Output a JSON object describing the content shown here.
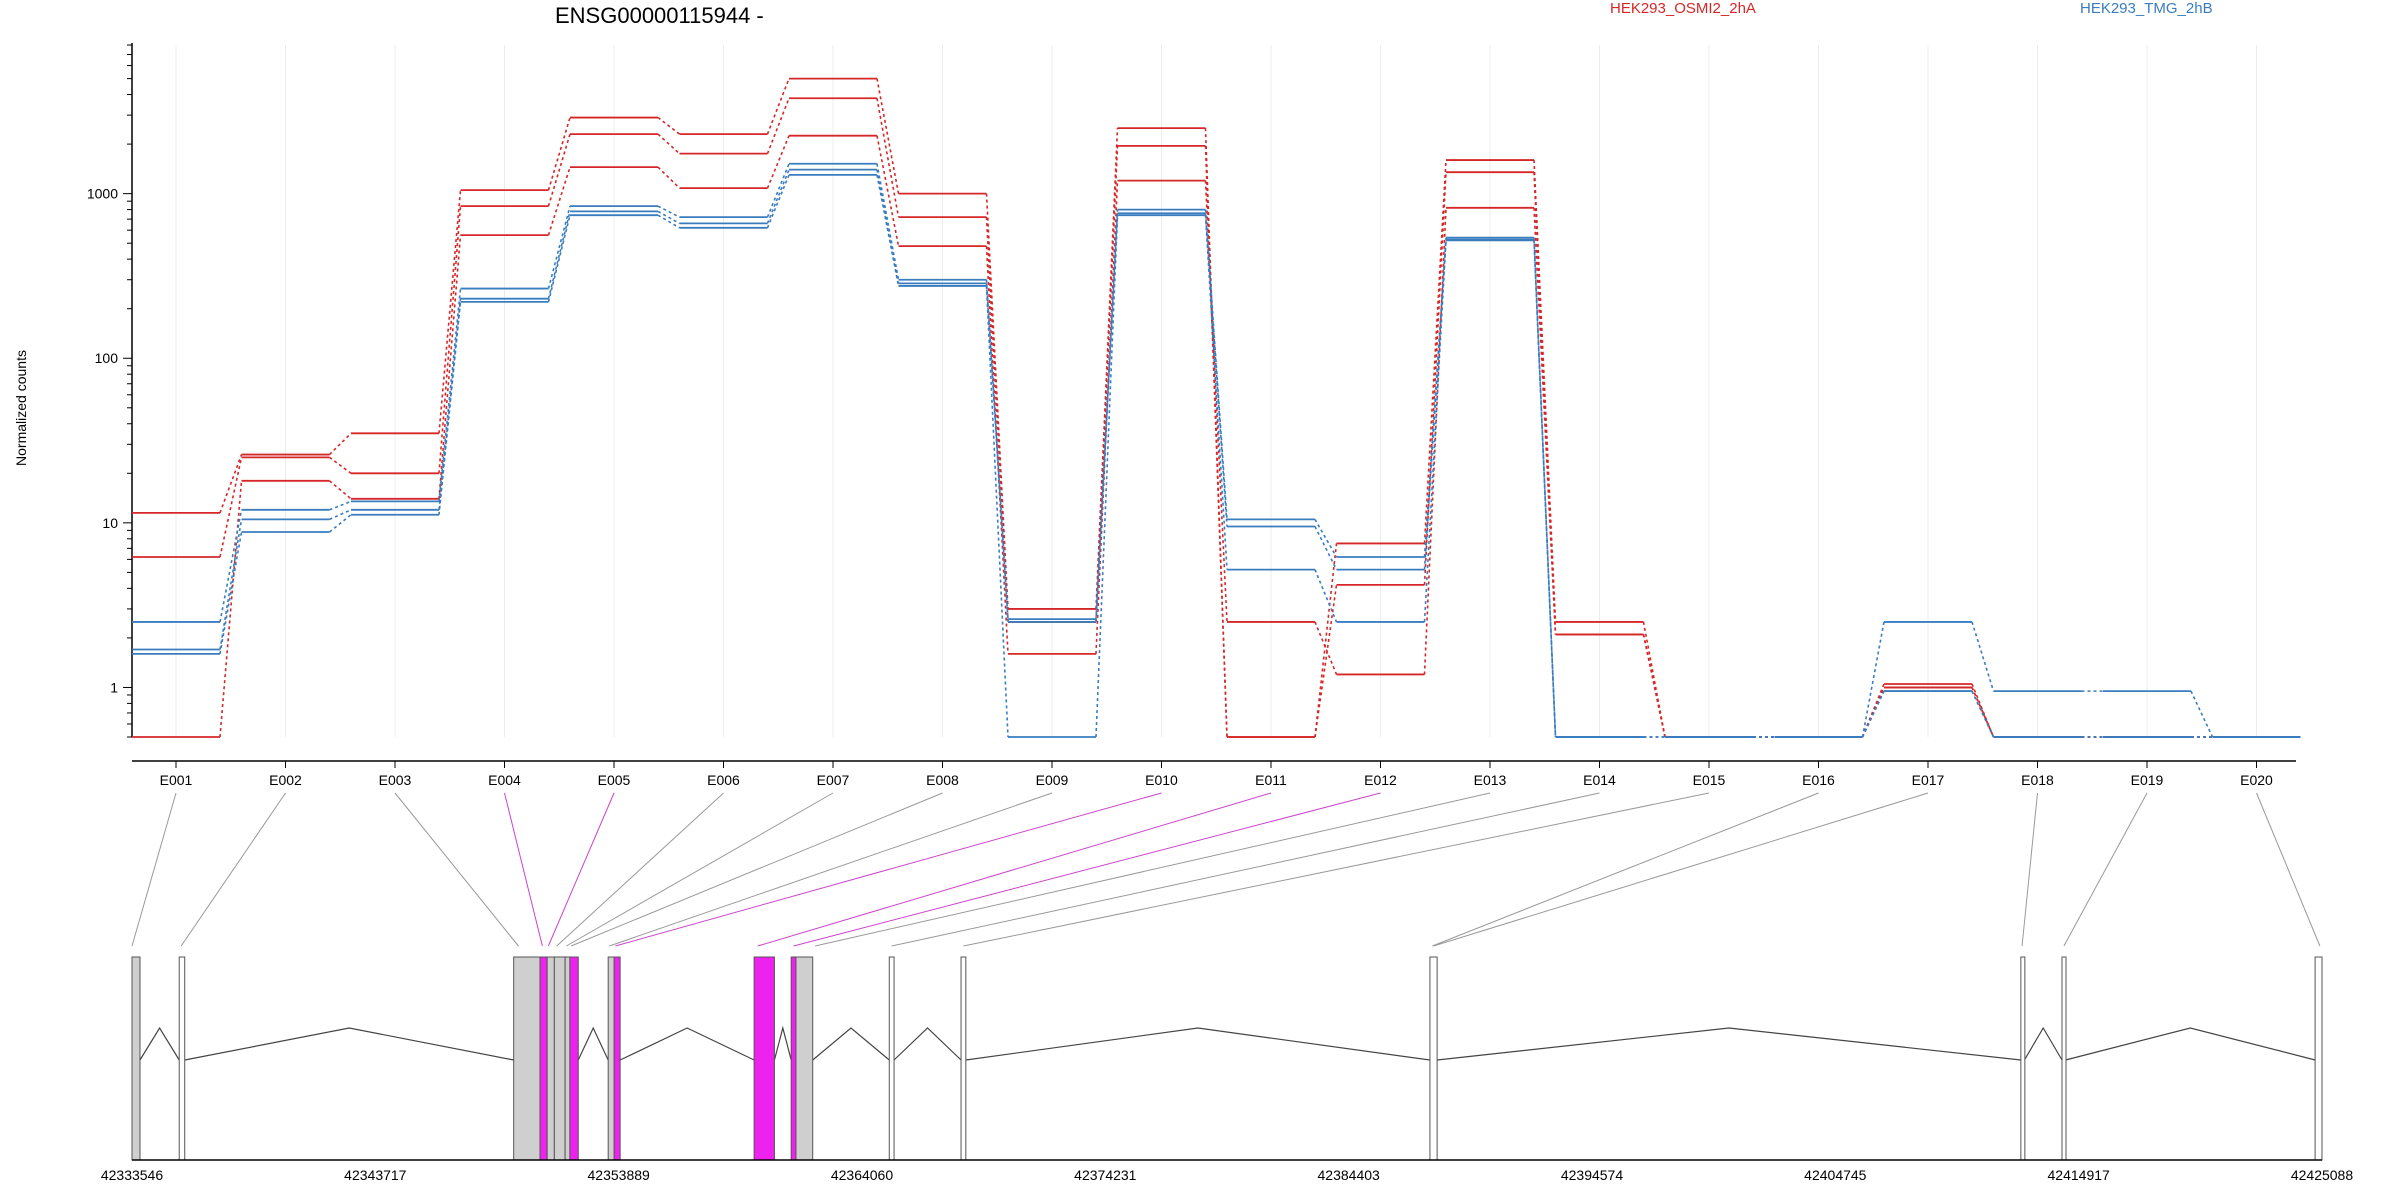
{
  "chart_data": {
    "type": "line",
    "title": "ENSG00000115944 -",
    "xlabel": "",
    "ylabel": "Normalized counts",
    "yscale": "log",
    "ylim": [
      0.5,
      8000
    ],
    "yticks": [
      1,
      10,
      100,
      1000
    ],
    "grid": false,
    "legend_placement": "top",
    "categories": [
      "E001",
      "E002",
      "E003",
      "E004",
      "E005",
      "E006",
      "E007",
      "E008",
      "E009",
      "E010",
      "E011",
      "E012",
      "E013",
      "E014",
      "E015",
      "E016",
      "E017",
      "E018",
      "E019",
      "E020"
    ],
    "colors": {
      "red": "#d62728",
      "blue": "#3a7dbf",
      "magenta": "#ee22ee",
      "gray": "#c8c8c8"
    },
    "series": [
      {
        "name": "HEK293_OSMI2_2hA",
        "color": "#d62728",
        "values": [
          11.5,
          26,
          35,
          1050,
          2900,
          2300,
          5000,
          1000,
          3.0,
          2500,
          0.5,
          7.5,
          1600,
          2.5,
          0.5,
          0.5,
          1.05,
          0.5,
          0.5,
          0.5
        ]
      },
      {
        "color": "#d62728",
        "values": [
          6.2,
          25,
          20,
          840,
          2300,
          1750,
          3800,
          720,
          2.5,
          1950,
          0.5,
          4.2,
          1350,
          2.1,
          0.5,
          0.5,
          1.0,
          0.5,
          0.5,
          0.5
        ]
      },
      {
        "color": "#d62728",
        "values": [
          0.5,
          18,
          14,
          560,
          1450,
          1080,
          2250,
          480,
          1.6,
          1200,
          2.5,
          1.2,
          820,
          2.1,
          0.5,
          0.5,
          1.0,
          0.5,
          0.5,
          0.5
        ]
      },
      {
        "name": "HEK293_TMG_2hB",
        "color": "#3a7dbf",
        "values": [
          2.5,
          12,
          13.5,
          265,
          840,
          720,
          1520,
          300,
          2.6,
          800,
          10.5,
          6.2,
          540,
          0.5,
          0.5,
          0.5,
          2.5,
          0.95,
          0.95,
          0.5
        ]
      },
      {
        "color": "#3a7dbf",
        "values": [
          1.7,
          10.5,
          12,
          230,
          780,
          660,
          1400,
          285,
          2.5,
          760,
          9.5,
          5.2,
          525,
          0.5,
          0.5,
          0.5,
          0.95,
          0.5,
          0.5,
          0.5
        ]
      },
      {
        "color": "#3a7dbf",
        "values": [
          1.6,
          8.8,
          11.2,
          220,
          740,
          620,
          1300,
          275,
          0.5,
          740,
          5.2,
          2.5,
          520,
          0.5,
          0.5,
          0.5,
          0.95,
          0.5,
          0.5,
          0.5
        ]
      }
    ],
    "gene_model": {
      "coordinates": [
        "42333546",
        "42343717",
        "42353889",
        "42364060",
        "42374231",
        "42384403",
        "42394574",
        "42404745",
        "42414917",
        "42425088"
      ],
      "range": [
        42333546,
        42425088
      ]
    }
  }
}
